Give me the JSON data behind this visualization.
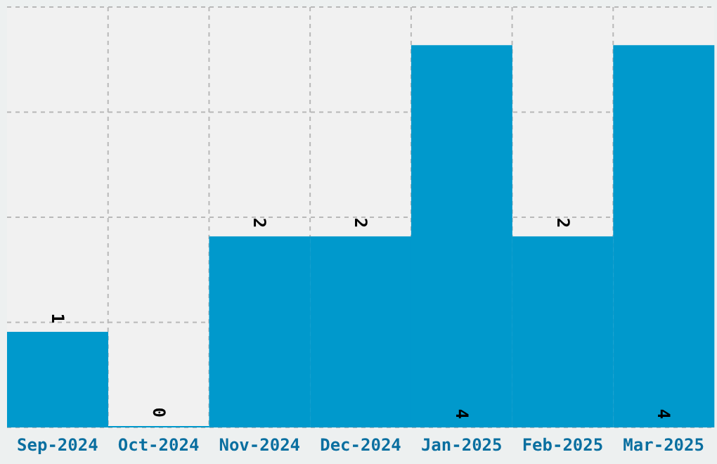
{
  "chart_data": {
    "type": "bar",
    "categories": [
      "Sep-2024",
      "Oct-2024",
      "Nov-2024",
      "Dec-2024",
      "Jan-2025",
      "Feb-2025",
      "Mar-2025"
    ],
    "values": [
      1,
      0,
      2,
      2,
      4,
      2,
      4
    ],
    "color": "#0099cc",
    "ylim": [
      0,
      4.4
    ],
    "yticks": [
      {
        "value": 0,
        "label": null
      },
      {
        "value": 1.1,
        "label": null
      },
      {
        "value": 2.2,
        "label": null
      },
      {
        "value": 3.3,
        "label": null
      },
      {
        "value": 4.4,
        "label": null
      }
    ],
    "tick_labels": "x",
    "grid": true,
    "data_labels": true
  }
}
